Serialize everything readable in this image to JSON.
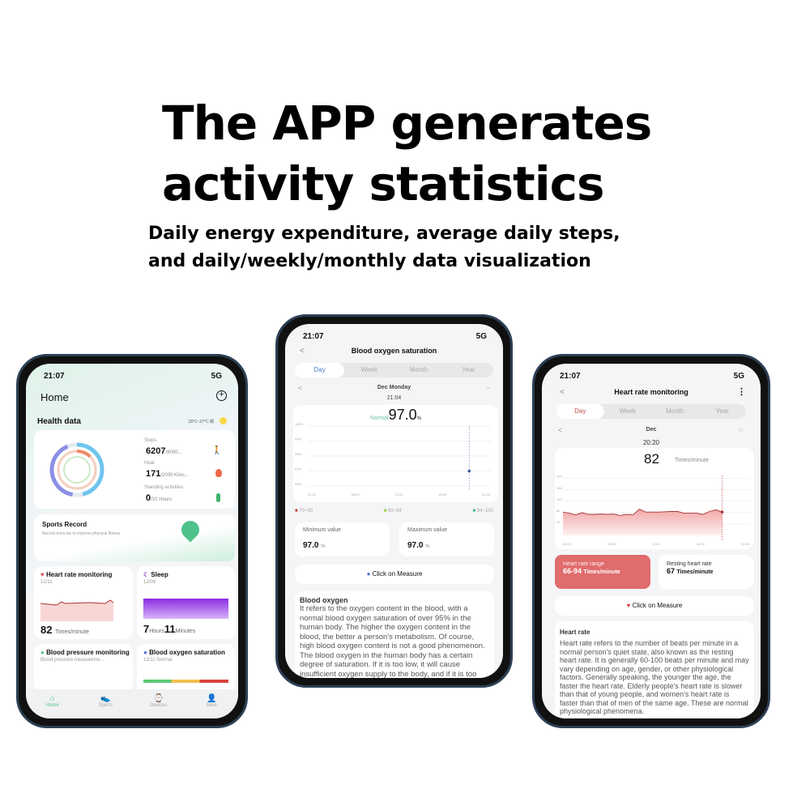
{
  "headline": {
    "line1": "The APP generates",
    "line2": "activity statistics"
  },
  "subheadline": {
    "line1": "Daily energy expenditure, average daily steps,",
    "line2": "and daily/weekly/monthly data visualization"
  },
  "phone_home": {
    "time": "21:07",
    "signal": "5G",
    "title": "Home",
    "section": "Health data",
    "weather": "18°C~27°C 晴",
    "steps": {
      "label": "Steps",
      "value": "6207",
      "goal": "/8000..."
    },
    "heat": {
      "label": "Heat",
      "value": "171",
      "goal": "/2000 Kiloc..."
    },
    "standing": {
      "label": "Standing activities",
      "value": "0",
      "goal": "/10 Hours"
    },
    "sports": {
      "title": "Sports Record",
      "desc": "Record exercise to improve physical fitness"
    },
    "heart": {
      "title": "Heart rate monitoring",
      "date": "12/11",
      "value": "82",
      "unit": "Times/minute"
    },
    "sleep": {
      "title": "Sleep",
      "date": "12/09",
      "hours": "7",
      "hours_unit": "Hours",
      "minutes": "11",
      "minutes_unit": "Minutes"
    },
    "bp": {
      "title": "Blood pressure monitoring",
      "desc": "Blood pressure measureme..."
    },
    "oxygen": {
      "title": "Blood oxygen saturation",
      "date": "12/11 Normal"
    },
    "nav": [
      "Home",
      "Sports",
      "Devices",
      "Mine"
    ]
  },
  "phone_oxygen": {
    "time": "21:07",
    "signal": "5G",
    "title": "Blood oxygen saturation",
    "tabs": [
      "Day",
      "Week",
      "Month",
      "Year"
    ],
    "date": "Dec Monday",
    "clock": "21:04",
    "status": "Normal",
    "value": "97.0",
    "unit": "%",
    "chart": {
      "y_ticks": [
        "100%",
        "99%",
        "98%",
        "97%",
        "96%"
      ],
      "x_ticks": [
        "00:00",
        "06:00",
        "12:00",
        "18:00",
        "24:00"
      ],
      "point": {
        "time": "21:04",
        "value": 97.0
      }
    },
    "legend": [
      {
        "label": "70~90",
        "color": "#c0392b"
      },
      {
        "label": "90~94",
        "color": "#9acd32"
      },
      {
        "label": "94~100",
        "color": "#3cb38a"
      }
    ],
    "min": {
      "label": "Minimum value",
      "value": "97.0",
      "unit": "%"
    },
    "max": {
      "label": "Maximum value",
      "value": "97.0",
      "unit": "%"
    },
    "measure": "Click on Measure",
    "info_title": "Blood oxygen",
    "info_text": "It refers to the oxygen content in the blood, with a normal blood oxygen saturation of over 95% in the human body. The higher the oxygen content in the blood, the better a person's metabolism. Of course, high blood oxygen content is not a good phenomenon. The blood oxygen in the human body has a certain degree of saturation. If it is too low, it will cause insufficient oxygen supply to the body, and if it is too high, it will lead to cell aging in the body."
  },
  "phone_heart": {
    "time": "21:07",
    "signal": "5G",
    "title": "Heart rate monitoring",
    "tabs": [
      "Day",
      "Week",
      "Month",
      "Year"
    ],
    "date": "Dec",
    "clock": "20:20",
    "value": "82",
    "unit": "Times/minute",
    "chart": {
      "y_ticks": [
        "200",
        "160",
        "120",
        "80",
        "40"
      ],
      "x_ticks": [
        "00:00",
        "06:00",
        "12:00",
        "18:00",
        "24:00"
      ],
      "series": [
        82,
        78,
        72,
        80,
        74,
        74,
        75,
        74,
        75,
        70,
        74,
        72,
        92,
        82,
        82,
        82,
        83,
        84,
        84,
        78,
        78,
        78,
        74,
        84,
        90,
        82
      ]
    },
    "range": {
      "label": "Heart rate range",
      "value": "66-94",
      "unit": "Times/minute"
    },
    "resting": {
      "label": "Resting heart rate",
      "value": "67",
      "unit": "Times/minute"
    },
    "measure": "Click on Measure",
    "info_title": "Heart rate",
    "info_text": "Heart rate refers to the number of beats per minute in a normal person's quiet state, also known as the resting heart rate. It is generally 60-100 beats per minute and may vary depending on age, gender, or other physiological factors. Generally speaking, the younger the age, the faster the heart rate. Elderly people's heart rate is slower than that of young people, and women's heart rate is faster than that of men of the same age. These are normal physiological phenomena."
  }
}
